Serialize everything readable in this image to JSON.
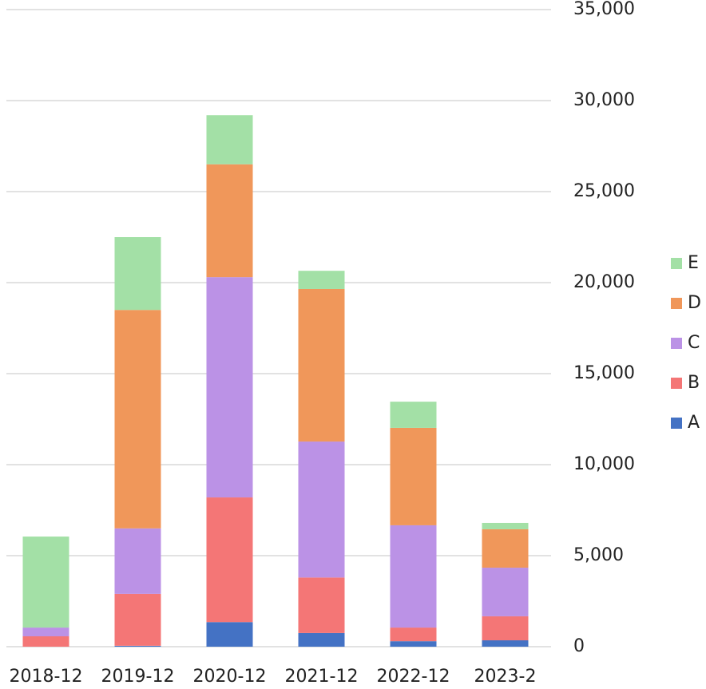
{
  "chart_data": {
    "type": "stacked_bar",
    "categories": [
      "2018-12",
      "2019-12",
      "2020-12",
      "2021-12",
      "2022-12",
      "2023-2"
    ],
    "series": [
      {
        "name": "A",
        "color": "#4472c4",
        "values": [
          0,
          50,
          1350,
          750,
          300,
          350
        ]
      },
      {
        "name": "B",
        "color": "#f47676",
        "values": [
          570,
          2850,
          6850,
          3050,
          750,
          1320
        ]
      },
      {
        "name": "C",
        "color": "#bb92e6",
        "values": [
          480,
          3600,
          12100,
          7470,
          5620,
          2670
        ]
      },
      {
        "name": "D",
        "color": "#f0975a",
        "values": [
          0,
          12000,
          6200,
          8380,
          5350,
          2110
        ]
      },
      {
        "name": "E",
        "color": "#a3e0a6",
        "values": [
          5000,
          4000,
          2700,
          1000,
          1440,
          350
        ]
      }
    ],
    "ylim": [
      0,
      35000
    ],
    "yticks": [
      0,
      {
        "value": 5000,
        "label": "5,000"
      },
      {
        "value": 10000,
        "label": "10,000"
      },
      {
        "value": 15000,
        "label": "15,000"
      },
      {
        "value": 20000,
        "label": "20,000"
      },
      {
        "value": 25000,
        "label": "25,000"
      },
      {
        "value": 30000,
        "label": "30,000"
      },
      {
        "value": 35000,
        "label": "35,000"
      }
    ],
    "grid": true,
    "legend": "right"
  }
}
